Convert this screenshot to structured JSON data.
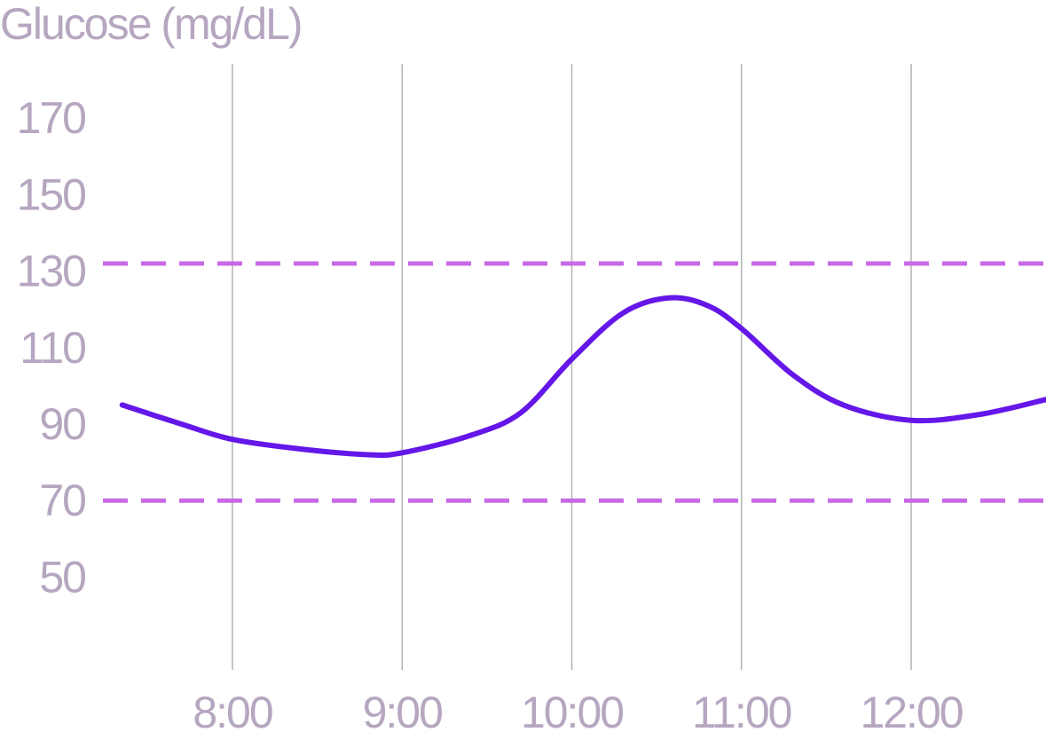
{
  "colors": {
    "text": "#b6a6c0",
    "grid": "#b4b4b4",
    "line": "#6417e8",
    "target_band": "#c86ae6"
  },
  "chart_data": {
    "type": "line",
    "title": "",
    "ylabel": "Glucose (mg/dL)",
    "xlabel": "",
    "x_ticks": [
      "8:00",
      "9:00",
      "10:00",
      "11:00",
      "12:00"
    ],
    "x_tick_hours": [
      8,
      9,
      10,
      11,
      12
    ],
    "xlim": [
      7.3,
      12.8
    ],
    "y_ticks": [
      50,
      70,
      90,
      110,
      130,
      150,
      170
    ],
    "ylim": [
      30,
      180
    ],
    "grid": {
      "vertical": true,
      "horizontal": false
    },
    "target_range": {
      "low": 70,
      "high": 132,
      "style": "dashed"
    },
    "series": [
      {
        "x": [
          7.35,
          7.7,
          8.0,
          8.4,
          8.8,
          9.0,
          9.4,
          9.7,
          10.0,
          10.3,
          10.57,
          10.8,
          11.0,
          11.3,
          11.6,
          12.0,
          12.4,
          12.8
        ],
        "y": [
          95,
          90,
          86,
          83.5,
          82,
          82.5,
          87,
          93,
          107,
          119,
          123,
          121,
          115,
          103,
          95,
          91,
          92.5,
          96.5
        ]
      }
    ]
  }
}
